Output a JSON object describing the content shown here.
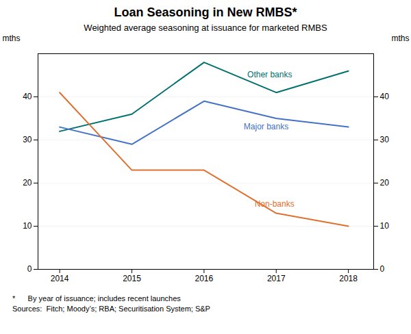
{
  "chart_data": {
    "type": "line",
    "title": "Loan Seasoning in New RMBS*",
    "subtitle": "Weighted average seasoning at issuance for marketed RMBS",
    "ylabel": "mths",
    "y2label": "mths",
    "notes": [
      "*      By year of issuance; includes recent launches",
      "Sources:  Fitch; Moody’s; RBA; Securitisation System; S&P"
    ],
    "x": [
      2014,
      2015,
      2016,
      2017,
      2018
    ],
    "xlim": [
      2013.7,
      2018.35
    ],
    "xticks": [
      2014,
      2015,
      2016,
      2017,
      2018
    ],
    "ylim": [
      0,
      50
    ],
    "yticks": [
      0,
      10,
      20,
      30,
      40
    ],
    "y2lim": [
      0,
      50
    ],
    "y2ticks": [
      0,
      10,
      20,
      30,
      40
    ],
    "grid": true,
    "series": [
      {
        "name": "Other banks",
        "color": "#007070",
        "values": [
          32,
          36,
          48,
          41,
          46
        ],
        "label_x": 2016.6,
        "label_y": 44.5
      },
      {
        "name": "Major banks",
        "color": "#4472C4",
        "values": [
          33,
          29,
          39,
          35,
          33
        ],
        "label_x": 2016.55,
        "label_y": 32.5
      },
      {
        "name": "Non-banks",
        "color": "#E07030",
        "values": [
          41,
          23,
          23,
          13,
          10
        ],
        "label_x": 2016.7,
        "label_y": 14.5
      }
    ]
  }
}
